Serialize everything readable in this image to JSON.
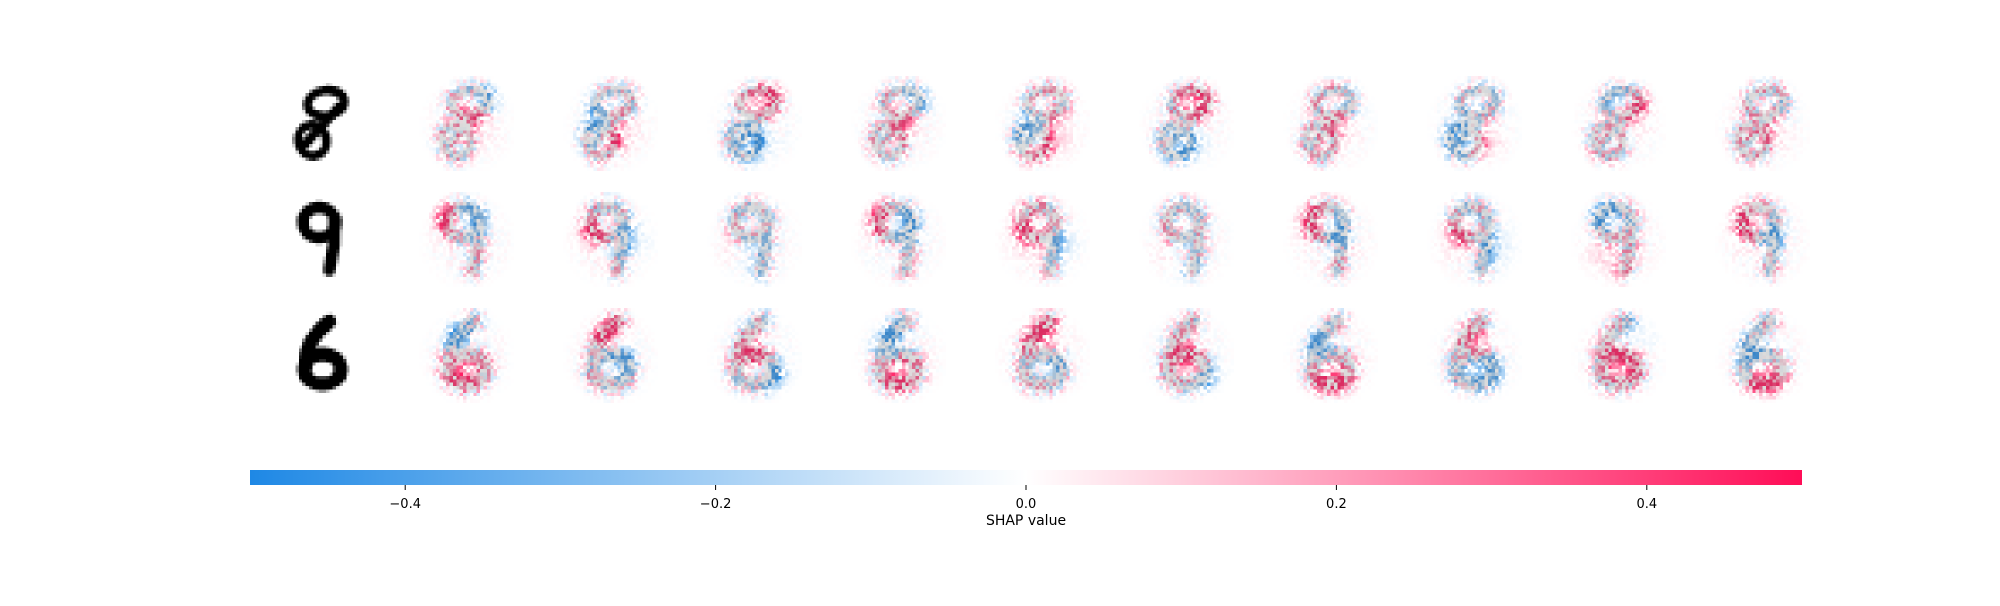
{
  "chart_data": {
    "type": "heatmap",
    "title": "",
    "rows": [
      {
        "digit": "8",
        "shap_maps": 10
      },
      {
        "digit": "9",
        "shap_maps": 10
      },
      {
        "digit": "6",
        "shap_maps": 10
      }
    ],
    "colorbar": {
      "label": "SHAP value",
      "range": [
        -0.5,
        0.5
      ],
      "ticks": [
        -0.4,
        -0.2,
        0.0,
        0.2,
        0.4
      ],
      "tick_labels": [
        "−0.4",
        "−0.2",
        "0.0",
        "0.2",
        "0.4"
      ],
      "colors": {
        "negative": "#1E88E5",
        "zero": "#FFFFFF",
        "positive": "#FF0D57"
      }
    },
    "grid": false
  }
}
